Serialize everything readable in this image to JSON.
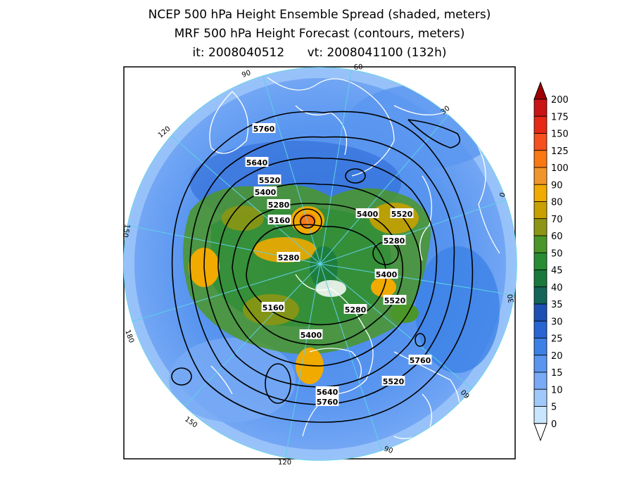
{
  "titles": {
    "line1": "NCEP 500 hPa Height Ensemble Spread (shaded, meters)",
    "line2": "MRF 500 hPa Height Forecast (contours, meters)",
    "line3": "it: 2008040512      vt: 2008041100 (132h)"
  },
  "colors": {
    "ocean_cyan": "#5fd0e6",
    "coast_lines": "#ffffff",
    "contour_lines": "#000000",
    "frame": "#000000"
  },
  "longitude_labels": [
    "60",
    "30",
    "0",
    "30",
    "60",
    "90",
    "120",
    "150",
    "180",
    "150",
    "120",
    "90"
  ],
  "contour_labels": [
    "5760",
    "5640",
    "5520",
    "5400",
    "5280",
    "5160",
    "5400",
    "5520",
    "5280",
    "5280",
    "5400",
    "5520",
    "5160",
    "5280",
    "5400",
    "5520",
    "5640",
    "5760",
    "5760"
  ],
  "colorbar": {
    "levels": [
      "200",
      "175",
      "150",
      "125",
      "100",
      "90",
      "80",
      "70",
      "60",
      "50",
      "45",
      "40",
      "35",
      "30",
      "25",
      "20",
      "15",
      "10",
      "5",
      "0"
    ],
    "colors": [
      "#a00000",
      "#c81414",
      "#e62814",
      "#f5501e",
      "#fa7814",
      "#f09628",
      "#f0aa00",
      "#c8a000",
      "#8c9614",
      "#4b9628",
      "#288c32",
      "#19783c",
      "#14645a",
      "#1e50b4",
      "#2864d2",
      "#3c82e6",
      "#5a96f0",
      "#78aaf5",
      "#a0c8fa",
      "#c8e6ff"
    ]
  }
}
